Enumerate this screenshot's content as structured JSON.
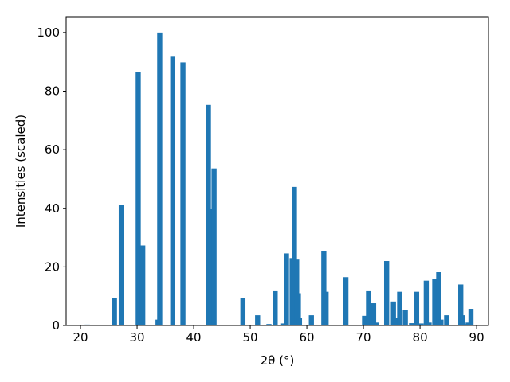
{
  "chart_data": {
    "type": "bar",
    "xlabel": "2θ (°)",
    "ylabel": "Intensities (scaled)",
    "x": [
      21.2,
      26,
      27.2,
      30.2,
      31,
      33.7,
      34,
      36.3,
      38.1,
      42.6,
      43.1,
      43.6,
      48.7,
      51.3,
      53.3,
      54.4,
      55.9,
      56.4,
      57.4,
      57.8,
      58.2,
      58.5,
      58.7,
      60.8,
      63,
      63.4,
      66.9,
      70.2,
      70.9,
      71.5,
      71.8,
      72.3,
      74.1,
      75.3,
      75.8,
      76.4,
      77.4,
      78.5,
      79.4,
      80.2,
      81.1,
      81.6,
      82.6,
      83.3,
      83.7,
      84.7,
      87.2,
      87.5,
      88,
      88.5,
      89
    ],
    "values": [
      0.3,
      9.5,
      41.2,
      86.5,
      27.3,
      2,
      100,
      92,
      89.8,
      75.3,
      39.7,
      53.6,
      9.4,
      3.5,
      0.5,
      11.7,
      0.7,
      24.6,
      23,
      47.3,
      22.5,
      11,
      2.5,
      3.5,
      25.5,
      11.5,
      16.5,
      3.3,
      11.7,
      4.5,
      7.6,
      1,
      22,
      8.2,
      2.5,
      11.5,
      5.4,
      0.8,
      11.5,
      0.7,
      15.3,
      1,
      16,
      18.2,
      2,
      3.5,
      14,
      3.5,
      0.5,
      1,
      5.7
    ],
    "color": "#1f77b4",
    "xlim": [
      17.46,
      92.1
    ],
    "ylim": [
      0,
      105.4
    ],
    "xticks": [
      20,
      30,
      40,
      50,
      60,
      70,
      80,
      90
    ],
    "yticks": [
      0,
      20,
      40,
      60,
      80,
      100
    ]
  }
}
